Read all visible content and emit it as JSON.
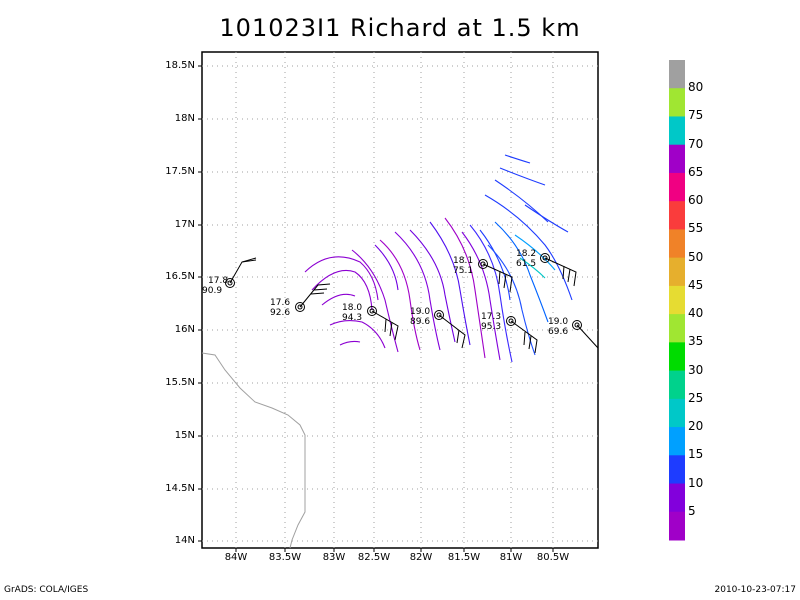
{
  "title": "101023I1 Richard at 1.5 km",
  "footer": {
    "left": "GrADS: COLA/IGES",
    "right": "2010-10-23-07:17"
  },
  "map": {
    "lat_labels": [
      "18.5N",
      "18N",
      "17.5N",
      "17N",
      "16.5N",
      "16N",
      "15.5N",
      "15N",
      "14.5N",
      "14N"
    ],
    "lon_labels": [
      "84W",
      "83.5W",
      "83W",
      "82.5W",
      "82W",
      "81.5W",
      "81W",
      "80.5W"
    ],
    "grid": true,
    "coastline_color": "#a0a0a0"
  },
  "colorbar": {
    "labels": [
      "80",
      "75",
      "70",
      "65",
      "60",
      "55",
      "50",
      "45",
      "40",
      "35",
      "30",
      "25",
      "20",
      "15",
      "10",
      "5"
    ],
    "colors": [
      "#a0a0a0",
      "#a0e632",
      "#00c8c8",
      "#a000c8",
      "#f00082",
      "#fa3c3c",
      "#f08228",
      "#e6af2d",
      "#e6dc32",
      "#a0e632",
      "#00dc00",
      "#00d28c",
      "#00c8c8",
      "#00a0ff",
      "#1e3cff",
      "#8200dc",
      "#a000c8"
    ]
  },
  "storm_positions": [
    {
      "lat_label": "17.8",
      "val": "90.9"
    },
    {
      "lat_label": "17.6",
      "val": "92.6"
    },
    {
      "lat_label": "18.0",
      "val": "94.3"
    },
    {
      "lat_label": "19.0",
      "val": "89.6"
    },
    {
      "lat_label": "18.1",
      "val": "75.1"
    },
    {
      "lat_label": "17.3",
      "val": "95.3"
    },
    {
      "lat_label": "18.2",
      "val": "61.5"
    },
    {
      "lat_label": "19.0",
      "val": "69.6"
    }
  ]
}
